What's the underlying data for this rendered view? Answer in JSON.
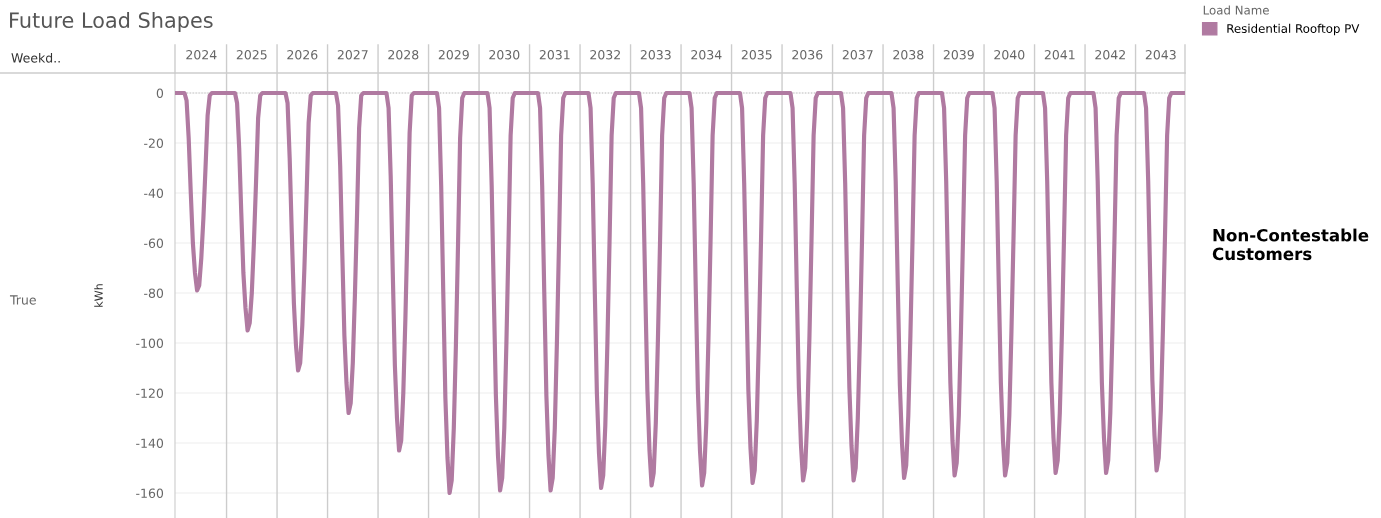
{
  "chart_data": {
    "type": "line",
    "title": "Future Load Shapes",
    "ylabel": "kWh",
    "legend_title": "Load Name",
    "legend": "right",
    "annotations": [
      "Weekd..",
      "True",
      "Non-Contestable Customers"
    ],
    "categories": [
      null,
      null,
      null,
      null,
      null,
      null,
      null,
      null,
      null,
      null,
      null,
      null,
      "2024",
      null,
      null,
      null,
      null,
      null,
      null,
      null,
      null,
      null,
      null,
      null,
      null,
      null,
      null,
      null,
      null,
      null,
      null,
      null,
      null,
      null,
      null,
      null,
      "2025",
      null,
      null,
      null,
      null,
      null,
      null,
      null,
      null,
      null,
      null,
      null,
      null,
      null,
      null,
      null,
      null,
      null,
      null,
      null,
      null,
      null,
      null,
      null,
      "2026",
      null,
      null,
      null,
      null,
      null,
      null,
      null,
      null,
      null,
      null,
      null,
      null,
      null,
      null,
      null,
      null,
      null,
      null,
      null,
      null,
      null,
      null,
      null,
      "2027",
      null,
      null,
      null,
      null,
      null,
      null,
      null,
      null,
      null,
      null,
      null,
      null,
      null,
      null,
      null,
      null,
      null,
      null,
      null,
      null,
      null,
      null,
      null,
      "2028",
      null,
      null,
      null,
      null,
      null,
      null,
      null,
      null,
      null,
      null,
      null,
      null,
      null,
      null,
      null,
      null,
      null,
      null,
      null,
      null,
      null,
      null,
      null,
      "2029",
      null,
      null,
      null,
      null,
      null,
      null,
      null,
      null,
      null,
      null,
      null,
      null,
      null,
      null,
      null,
      null,
      null,
      null,
      null,
      null,
      null,
      null,
      null,
      "2030",
      null,
      null,
      null,
      null,
      null,
      null,
      null,
      null,
      null,
      null,
      null,
      null,
      null,
      null,
      null,
      null,
      null,
      null,
      null,
      null,
      null,
      null,
      null,
      "2031",
      null,
      null,
      null,
      null,
      null,
      null,
      null,
      null,
      null,
      null,
      null,
      null,
      null,
      null,
      null,
      null,
      null,
      null,
      null,
      null,
      null,
      null,
      null,
      "2032",
      null,
      null,
      null,
      null,
      null,
      null,
      null,
      null,
      null,
      null,
      null,
      null,
      null,
      null,
      null,
      null,
      null,
      null,
      null,
      null,
      null,
      null,
      null,
      "2033",
      null,
      null,
      null,
      null,
      null,
      null,
      null,
      null,
      null,
      null,
      null,
      null,
      null,
      null,
      null,
      null,
      null,
      null,
      null,
      null,
      null,
      null,
      null,
      "2034",
      null,
      null,
      null,
      null,
      null,
      null,
      null,
      null,
      null,
      null,
      null,
      null,
      null,
      null,
      null,
      null,
      null,
      null,
      null,
      null,
      null,
      null,
      null,
      "2035",
      null,
      null,
      null,
      null,
      null,
      null,
      null,
      null,
      null,
      null,
      null,
      null,
      null,
      null,
      null,
      null,
      null,
      null,
      null,
      null,
      null,
      null,
      null,
      "2036",
      null,
      null,
      null,
      null,
      null,
      null,
      null,
      null,
      null,
      null,
      null,
      null,
      null,
      null,
      null,
      null,
      null,
      null,
      null,
      null,
      null,
      null,
      null,
      "2037",
      null,
      null,
      null,
      null,
      null,
      null,
      null,
      null,
      null,
      null,
      null,
      null,
      null,
      null,
      null,
      null,
      null,
      null,
      null,
      null,
      null,
      null,
      null,
      "2038",
      null,
      null,
      null,
      null,
      null,
      null,
      null,
      null,
      null,
      null,
      null,
      null,
      null,
      null,
      null,
      null,
      null,
      null,
      null,
      null,
      null,
      null,
      null,
      "2039",
      null,
      null,
      null,
      null,
      null,
      null,
      null,
      null,
      null,
      null,
      null,
      null,
      null,
      null,
      null,
      null,
      null,
      null,
      null,
      null,
      null,
      null,
      null,
      "2040",
      null,
      null,
      null,
      null,
      null,
      null,
      null,
      null,
      null,
      null,
      null,
      null,
      null,
      null,
      null,
      null,
      null,
      null,
      null,
      null,
      null,
      null,
      null,
      "2041",
      null,
      null,
      null,
      null,
      null,
      null,
      null,
      null,
      null,
      null,
      null,
      null,
      null,
      null,
      null,
      null,
      null,
      null,
      null,
      null,
      null,
      null,
      null,
      "2042",
      null,
      null,
      null,
      null,
      null,
      null,
      null,
      null,
      null,
      null,
      null,
      null,
      null,
      null,
      null,
      null,
      null,
      null,
      null,
      null,
      null,
      null,
      null,
      "2043",
      null,
      null,
      null,
      null,
      null,
      null,
      null,
      null,
      null,
      null,
      null
    ],
    "series": [
      {
        "name": "Residential Rooftop PV",
        "color": "#b07aa1",
        "values": [
          0,
          0,
          0,
          0,
          0,
          -3,
          -18,
          -40,
          -60,
          -72,
          -79,
          -77,
          -66,
          -50,
          -30,
          -9,
          -1,
          0,
          0,
          0,
          0,
          0,
          0,
          0,
          0,
          0,
          0,
          0,
          0,
          -4,
          -22,
          -48,
          -72,
          -86,
          -95,
          -92,
          -80,
          -60,
          -36,
          -10,
          -1,
          0,
          0,
          0,
          0,
          0,
          0,
          0,
          0,
          0,
          0,
          0,
          0,
          -4,
          -26,
          -56,
          -84,
          -101,
          -111,
          -108,
          -93,
          -70,
          -42,
          -12,
          -1,
          0,
          0,
          0,
          0,
          0,
          0,
          0,
          0,
          0,
          0,
          0,
          0,
          -5,
          -29,
          -64,
          -97,
          -116,
          -128,
          -124,
          -108,
          -81,
          -49,
          -14,
          -1,
          0,
          0,
          0,
          0,
          0,
          0,
          0,
          0,
          0,
          0,
          0,
          0,
          -6,
          -33,
          -72,
          -109,
          -130,
          -143,
          -139,
          -120,
          -90,
          -54,
          -16,
          -1,
          0,
          0,
          0,
          0,
          0,
          0,
          0,
          0,
          0,
          0,
          0,
          0,
          -6,
          -37,
          -80,
          -122,
          -146,
          -160,
          -155,
          -134,
          -101,
          -61,
          -18,
          -2,
          0,
          0,
          0,
          0,
          0,
          0,
          0,
          0,
          0,
          0,
          0,
          0,
          -6,
          -37,
          -80,
          -121,
          -145,
          -159,
          -154,
          -134,
          -100,
          -60,
          -17,
          -2,
          0,
          0,
          0,
          0,
          0,
          0,
          0,
          0,
          0,
          0,
          0,
          0,
          -6,
          -37,
          -80,
          -121,
          -145,
          -159,
          -154,
          -134,
          -100,
          -60,
          -17,
          -2,
          0,
          0,
          0,
          0,
          0,
          0,
          0,
          0,
          0,
          0,
          0,
          0,
          -6,
          -36,
          -79,
          -120,
          -144,
          -158,
          -153,
          -133,
          -100,
          -60,
          -17,
          -2,
          0,
          0,
          0,
          0,
          0,
          0,
          0,
          0,
          0,
          0,
          0,
          0,
          -6,
          -36,
          -79,
          -119,
          -143,
          -157,
          -152,
          -132,
          -99,
          -60,
          -17,
          -2,
          0,
          0,
          0,
          0,
          0,
          0,
          0,
          0,
          0,
          0,
          0,
          0,
          -6,
          -36,
          -79,
          -119,
          -143,
          -157,
          -152,
          -132,
          -99,
          -60,
          -17,
          -2,
          0,
          0,
          0,
          0,
          0,
          0,
          0,
          0,
          0,
          0,
          0,
          0,
          -6,
          -36,
          -78,
          -119,
          -142,
          -156,
          -151,
          -131,
          -98,
          -59,
          -17,
          -2,
          0,
          0,
          0,
          0,
          0,
          0,
          0,
          0,
          0,
          0,
          0,
          0,
          -6,
          -36,
          -78,
          -118,
          -141,
          -155,
          -150,
          -130,
          -98,
          -59,
          -17,
          -2,
          0,
          0,
          0,
          0,
          0,
          0,
          0,
          0,
          0,
          0,
          0,
          0,
          -6,
          -36,
          -78,
          -118,
          -141,
          -155,
          -150,
          -130,
          -98,
          -59,
          -17,
          -2,
          0,
          0,
          0,
          0,
          0,
          0,
          0,
          0,
          0,
          0,
          0,
          0,
          -6,
          -35,
          -77,
          -117,
          -140,
          -154,
          -149,
          -129,
          -97,
          -59,
          -17,
          -2,
          0,
          0,
          0,
          0,
          0,
          0,
          0,
          0,
          0,
          0,
          0,
          0,
          -6,
          -35,
          -77,
          -116,
          -139,
          -153,
          -148,
          -129,
          -96,
          -58,
          -17,
          -2,
          0,
          0,
          0,
          0,
          0,
          0,
          0,
          0,
          0,
          0,
          0,
          0,
          -6,
          -35,
          -77,
          -116,
          -139,
          -153,
          -148,
          -129,
          -96,
          -58,
          -17,
          -2,
          0,
          0,
          0,
          0,
          0,
          0,
          0,
          0,
          0,
          0,
          0,
          0,
          -6,
          -35,
          -76,
          -116,
          -138,
          -152,
          -147,
          -128,
          -96,
          -58,
          -17,
          -2,
          0,
          0,
          0,
          0,
          0,
          0,
          0,
          0,
          0,
          0,
          0,
          0,
          -6,
          -35,
          -76,
          -116,
          -138,
          -152,
          -147,
          -128,
          -96,
          -58,
          -17,
          -2,
          0,
          0,
          0,
          0,
          0,
          0,
          0,
          0,
          0,
          0,
          0,
          0,
          -6,
          -35,
          -76,
          -115,
          -137,
          -151,
          -146,
          -127,
          -95,
          -57,
          -17,
          -2,
          0,
          0,
          0,
          0,
          0,
          0,
          0
        ]
      }
    ],
    "ylim": [
      -170,
      8
    ],
    "yticks": [
      0,
      -20,
      -40,
      -60,
      -80,
      -100,
      -120,
      -140,
      -160
    ],
    "grid": "y",
    "ref_lines": [
      {
        "axis": "y",
        "value": 0,
        "line_style": "dotted",
        "color": "#bbbbbb"
      }
    ]
  }
}
